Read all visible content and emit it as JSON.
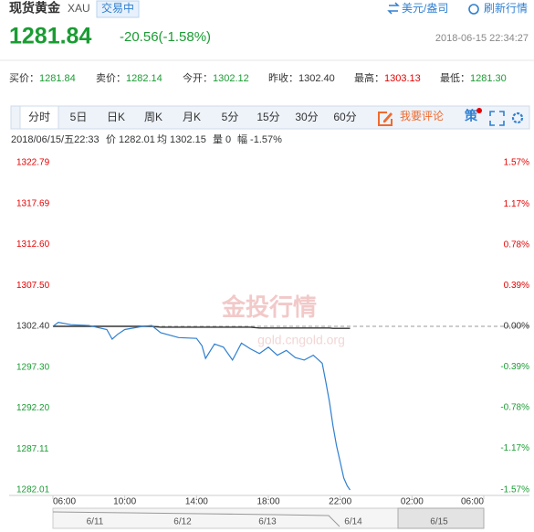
{
  "header": {
    "title": "现货黄金",
    "code": "XAU",
    "status": "交易中",
    "unit": "美元/盎司",
    "refresh": "刷新行情"
  },
  "quote": {
    "price": "1281.84",
    "change": "-20.56(-1.58%)",
    "time": "2018-06-15 22:34:27"
  },
  "stats": [
    {
      "label": "买价：",
      "value": "1281.84",
      "color": "#1a9c33"
    },
    {
      "label": "卖价：",
      "value": "1282.14",
      "color": "#1a9c33"
    },
    {
      "label": "今开：",
      "value": "1302.12",
      "color": "#1a9c33"
    },
    {
      "label": "昨收：",
      "value": "1302.40",
      "color": "#333333"
    },
    {
      "label": "最高：",
      "value": "1303.13",
      "color": "#e60000"
    },
    {
      "label": "最低：",
      "value": "1281.30",
      "color": "#1a9c33"
    }
  ],
  "tabs": [
    "分时",
    "5日",
    "日K",
    "周K",
    "月K",
    "5分",
    "15分",
    "30分",
    "60分"
  ],
  "comment": "我要评论",
  "strategy": "策",
  "info": [
    "2018/06/15/五22:33",
    "价 1282.01",
    "均 1302.15",
    "量 0",
    "幅 -1.57%"
  ],
  "navigator": [
    "6/11",
    "6/12",
    "6/13",
    "6/14",
    "6/15"
  ],
  "chart_data": {
    "type": "line",
    "watermark": "金投行情",
    "watermark_url": "gold.cngold.org",
    "x": [
      6,
      6.3,
      7,
      8,
      9,
      9.3,
      9.6,
      10,
      11,
      11.5,
      12,
      13,
      14,
      14.3,
      14.5,
      15,
      15.5,
      16,
      16.5,
      17,
      17.5,
      18,
      18.5,
      19,
      19.5,
      20,
      20.5,
      21,
      21.2,
      21.4,
      21.6,
      21.8,
      22,
      22.2,
      22.4,
      22.55
    ],
    "xlim": [
      6,
      30
    ],
    "xticks": [
      {
        "value": 6,
        "label": "06:00"
      },
      {
        "value": 10,
        "label": "10:00"
      },
      {
        "value": 14,
        "label": "14:00"
      },
      {
        "value": 18,
        "label": "18:00"
      },
      {
        "value": 22,
        "label": "22:00"
      },
      {
        "value": 26,
        "label": "02:00"
      },
      {
        "value": 30,
        "label": "06:00"
      }
    ],
    "ylim": [
      1282.01,
      1322.79
    ],
    "yticks": [
      1322.79,
      1317.69,
      {
        "value": 1312.6,
        "label": "1312.60"
      },
      {
        "value": 1307.5,
        "label": "1307.50"
      },
      {
        "value": 1302.4,
        "label": "1302.40"
      },
      {
        "value": 1297.3,
        "label": "1297.30"
      },
      {
        "value": 1292.2,
        "label": "1292.20"
      },
      1287.11,
      1282.01
    ],
    "y2lim": [
      -1.57,
      1.57
    ],
    "y2ticks": [
      {
        "value": 1.57,
        "label": "1.57%"
      },
      {
        "value": 1.17,
        "label": "1.17%"
      },
      {
        "value": 0.78,
        "label": "0.78%"
      },
      {
        "value": 0.39,
        "label": "0.39%"
      },
      {
        "value": 0,
        "label": "0.00%"
      },
      {
        "value": -0.39,
        "label": "-0.39%"
      },
      {
        "value": -0.78,
        "label": "-0.78%"
      },
      {
        "value": -1.17,
        "label": "-1.17%"
      },
      {
        "value": -1.57,
        "label": "-1.57%"
      }
    ],
    "series": [
      {
        "color": "#2f7fd0",
        "values": [
          1302.4,
          1302.9,
          1302.6,
          1302.5,
          1302.0,
          1300.8,
          1301.4,
          1302.0,
          1302.4,
          1302.5,
          1301.6,
          1301.0,
          1300.9,
          1300.0,
          1298.4,
          1300.2,
          1299.8,
          1298.2,
          1300.3,
          1299.6,
          1299.0,
          1299.8,
          1298.8,
          1299.4,
          1298.5,
          1298.2,
          1298.8,
          1297.8,
          1295.5,
          1293.0,
          1290.0,
          1287.5,
          1285.5,
          1283.5,
          1282.5,
          1282.01
        ]
      },
      {
        "color": "#333333",
        "values": [
          1302.4,
          1302.4,
          1302.4,
          1302.4,
          1302.4,
          1302.4,
          1302.4,
          1302.4,
          1302.4,
          1302.4,
          1302.3,
          1302.3,
          1302.3,
          1302.3,
          1302.3,
          1302.3,
          1302.3,
          1302.3,
          1302.3,
          1302.3,
          1302.2,
          1302.2,
          1302.2,
          1302.2,
          1302.2,
          1302.2,
          1302.2,
          1302.2,
          1302.2,
          1302.2,
          1302.15,
          1302.15,
          1302.15,
          1302.15,
          1302.15,
          1302.15
        ]
      }
    ]
  }
}
